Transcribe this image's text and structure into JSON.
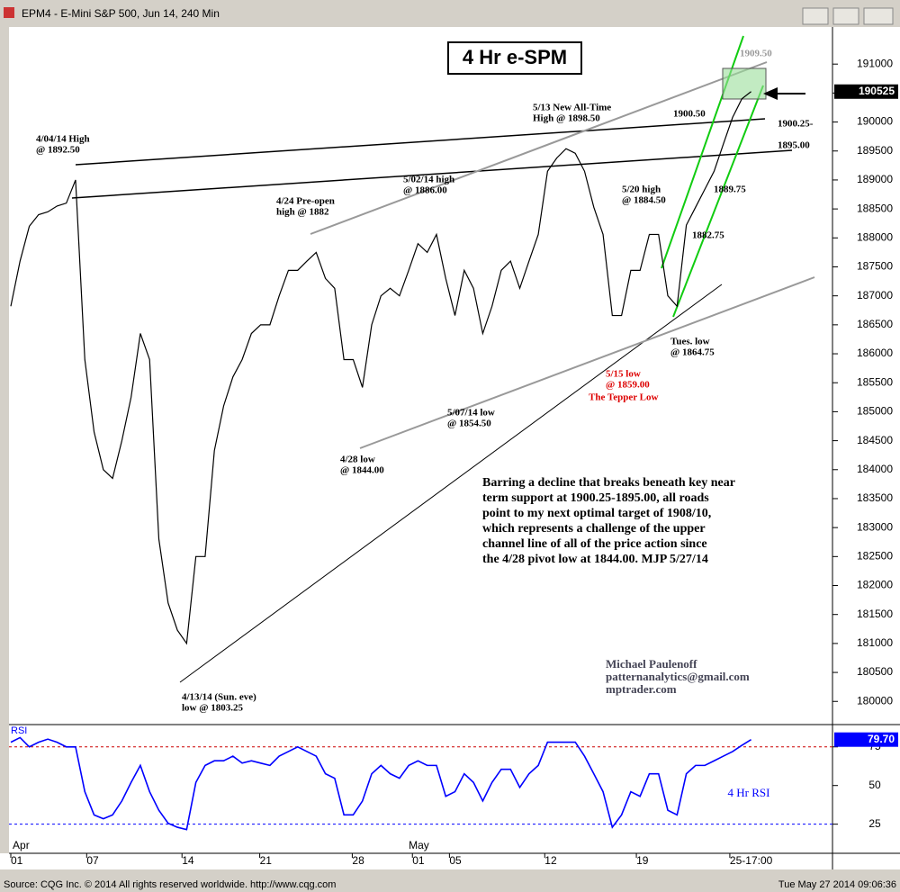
{
  "window_title": "EPM4 - E-Mini S&P 500, Jun 14, 240 Min",
  "footer": {
    "left": "Source: CQG Inc. © 2014 All rights reserved worldwide.  http://www.cqg.com",
    "right": "Tue May 27 2014 09:06:36"
  },
  "chart_data": [
    {
      "type": "line",
      "title": "4 Hr e-SPM",
      "color": "#000000",
      "x": [
        0,
        1,
        2,
        3,
        4,
        5,
        6,
        7,
        8,
        9,
        10,
        11,
        12,
        13,
        14,
        15,
        16,
        17,
        18,
        19,
        20,
        21,
        22,
        23,
        24,
        25,
        26,
        27,
        28,
        29,
        30,
        31,
        32,
        33,
        34,
        35,
        36,
        37,
        38,
        39,
        40,
        41,
        42,
        43,
        44,
        45,
        46,
        47,
        48,
        49,
        50,
        51,
        52,
        53,
        54,
        55,
        56,
        57,
        58,
        59,
        60,
        61,
        62,
        63,
        64,
        65,
        66,
        67,
        68,
        69,
        70,
        71,
        72,
        73,
        74,
        75,
        76,
        77,
        78,
        79,
        80
      ],
      "values": [
        1868.2,
        1876,
        1882,
        1884,
        1884.5,
        1885.5,
        1886,
        1890,
        1859,
        1846.5,
        1840,
        1838.5,
        1845,
        1852.5,
        1863.5,
        1859,
        1828,
        1817,
        1812.3,
        1810,
        1825,
        1825,
        1843.3,
        1851,
        1856,
        1859,
        1863.5,
        1865,
        1865,
        1870,
        1874.4,
        1874.4,
        1876,
        1877.5,
        1873,
        1871.3,
        1859,
        1859,
        1854.2,
        1865,
        1870,
        1871.3,
        1870,
        1874.4,
        1879,
        1877.5,
        1880.6,
        1873,
        1866.6,
        1874.4,
        1871.3,
        1863.5,
        1868.2,
        1874.4,
        1876,
        1871.3,
        1876,
        1880.6,
        1891.5,
        1893.8,
        1895.4,
        1894.6,
        1891.5,
        1885.3,
        1880.6,
        1866.6,
        1866.6,
        1874.4,
        1874.4,
        1880.6,
        1880.6,
        1870,
        1868.2,
        1882.2,
        1885.3,
        1888.4,
        1891.5,
        1896.2,
        1900.8,
        1904,
        1905.25
      ],
      "xlim": [
        0,
        88.6
      ],
      "ylim": [
        1796,
        1916.4
      ],
      "yticks": [
        {
          "value": 1800,
          "label": "180000"
        },
        {
          "value": 1805,
          "label": "180500"
        },
        {
          "value": 1810,
          "label": "181000"
        },
        {
          "value": 1815,
          "label": "181500"
        },
        {
          "value": 1820,
          "label": "182000"
        },
        {
          "value": 1825,
          "label": "182500"
        },
        {
          "value": 1830,
          "label": "183000"
        },
        {
          "value": 1835,
          "label": "183500"
        },
        {
          "value": 1840,
          "label": "184000"
        },
        {
          "value": 1845,
          "label": "184500"
        },
        {
          "value": 1850,
          "label": "185000"
        },
        {
          "value": 1855,
          "label": "185500"
        },
        {
          "value": 1860,
          "label": "186000"
        },
        {
          "value": 1865,
          "label": "186500"
        },
        {
          "value": 1870,
          "label": "187000"
        },
        {
          "value": 1875,
          "label": "187500"
        },
        {
          "value": 1880,
          "label": "188000"
        },
        {
          "value": 1885,
          "label": "188500"
        },
        {
          "value": 1890,
          "label": "189000"
        },
        {
          "value": 1895,
          "label": "189500"
        },
        {
          "value": 1900,
          "label": "190000"
        },
        {
          "value": 1905,
          "label": "190500"
        },
        {
          "value": 1910,
          "label": "191000"
        }
      ],
      "last_value": {
        "value": 1905.25,
        "label": "190525"
      },
      "annotations": [
        {
          "lines": [
            "4/04/14 High",
            "@ 1892.50"
          ],
          "color": "#000000"
        },
        {
          "lines": [
            "4/24 Pre-open",
            "high @ 1882"
          ],
          "color": "#000000"
        },
        {
          "lines": [
            "5/02/14 high",
            "@ 1886.00"
          ],
          "color": "#000000"
        },
        {
          "lines": [
            "5/13 New All-Time",
            "High @ 1898.50"
          ],
          "color": "#000000"
        },
        {
          "lines": [
            "5/20 high",
            "@ 1884.50"
          ],
          "color": "#000000"
        },
        {
          "lines": [
            "1900.50"
          ],
          "color": "#000000"
        },
        {
          "lines": [
            "1909.50"
          ],
          "color": "#999999"
        },
        {
          "lines": [
            "1900.25-"
          ],
          "color": "#000000"
        },
        {
          "lines": [
            "1895.00"
          ],
          "color": "#000000"
        },
        {
          "lines": [
            "1889.75"
          ],
          "color": "#000000"
        },
        {
          "lines": [
            "1882.75"
          ],
          "color": "#000000"
        },
        {
          "lines": [
            "Tues. low",
            "@ 1864.75"
          ],
          "color": "#000000"
        },
        {
          "lines": [
            "5/15 low",
            "@ 1859.00"
          ],
          "color": "#dd0000"
        },
        {
          "lines": [
            "The Tepper Low"
          ],
          "color": "#dd0000"
        },
        {
          "lines": [
            "5/07/14 low",
            "@ 1854.50"
          ],
          "color": "#000000"
        },
        {
          "lines": [
            "4/28 low",
            "@ 1844.00"
          ],
          "color": "#000000"
        },
        {
          "lines": [
            "4/13/14 (Sun. eve)",
            "low @ 1803.25"
          ],
          "color": "#000000"
        }
      ],
      "commentary": [
        "Barring a decline that breaks beneath key near",
        "term support at 1900.25-1895.00, all roads",
        "point to my next optimal target of 1908/10,",
        "which represents a challenge of the upper",
        "channel line of all of the price action since",
        "the 4/28 pivot low at 1844.00. MJP  5/27/14"
      ],
      "author": [
        "Michael Paulenoff",
        "patternanalytics@gmail.com",
        "mptrader.com"
      ]
    },
    {
      "type": "line",
      "title": "RSI",
      "subtitle": "4 Hr RSI",
      "color": "#0000ff",
      "x": [
        0,
        1,
        2,
        3,
        4,
        5,
        6,
        7,
        8,
        9,
        10,
        11,
        12,
        13,
        14,
        15,
        16,
        17,
        18,
        19,
        20,
        21,
        22,
        23,
        24,
        25,
        26,
        27,
        28,
        29,
        30,
        31,
        32,
        33,
        34,
        35,
        36,
        37,
        38,
        39,
        40,
        41,
        42,
        43,
        44,
        45,
        46,
        47,
        48,
        49,
        50,
        51,
        52,
        53,
        54,
        55,
        56,
        57,
        58,
        59,
        60,
        61,
        62,
        63,
        64,
        65,
        66,
        67,
        68,
        69,
        70,
        71,
        72,
        73,
        74,
        75,
        76,
        77,
        78,
        79,
        80
      ],
      "values": [
        78,
        81,
        75,
        78,
        80,
        78,
        75,
        75,
        46,
        31,
        28.5,
        31,
        40,
        52,
        63,
        46,
        34,
        25.6,
        23,
        21.5,
        52,
        63,
        66,
        66,
        69,
        64.5,
        66,
        64.5,
        63,
        69,
        72,
        75,
        72,
        69,
        57.6,
        54.7,
        31,
        31,
        40,
        57.6,
        63,
        57.6,
        54.7,
        63,
        66,
        63,
        63,
        43,
        46,
        57.6,
        52,
        40,
        52,
        60.5,
        60.5,
        48.8,
        57.6,
        63,
        78,
        78,
        78,
        78,
        69,
        57.6,
        46,
        23,
        31,
        46,
        43,
        57.6,
        57.6,
        34,
        31,
        57.6,
        63,
        63,
        66,
        69,
        72,
        76,
        79.7
      ],
      "xlim": [
        0,
        88.6
      ],
      "ylim": [
        5,
        90
      ],
      "yticks": [
        25,
        50,
        75
      ],
      "last_value": {
        "value": 79.7,
        "label": "79.70"
      },
      "xticks": [
        {
          "value": 0,
          "label": "01"
        },
        {
          "value": 8.2,
          "label": "07"
        },
        {
          "value": 18.5,
          "label": "14"
        },
        {
          "value": 26.9,
          "label": "21"
        },
        {
          "value": 36.9,
          "label": "28"
        },
        {
          "value": 43.4,
          "label": "01"
        },
        {
          "value": 47.4,
          "label": "05"
        },
        {
          "value": 57.7,
          "label": "12"
        },
        {
          "value": 67.6,
          "label": "19"
        },
        {
          "value": 77.7,
          "label": "25-17:00"
        }
      ],
      "months": [
        {
          "value": 0.2,
          "label": "Apr"
        },
        {
          "value": 43,
          "label": "May"
        }
      ]
    }
  ]
}
